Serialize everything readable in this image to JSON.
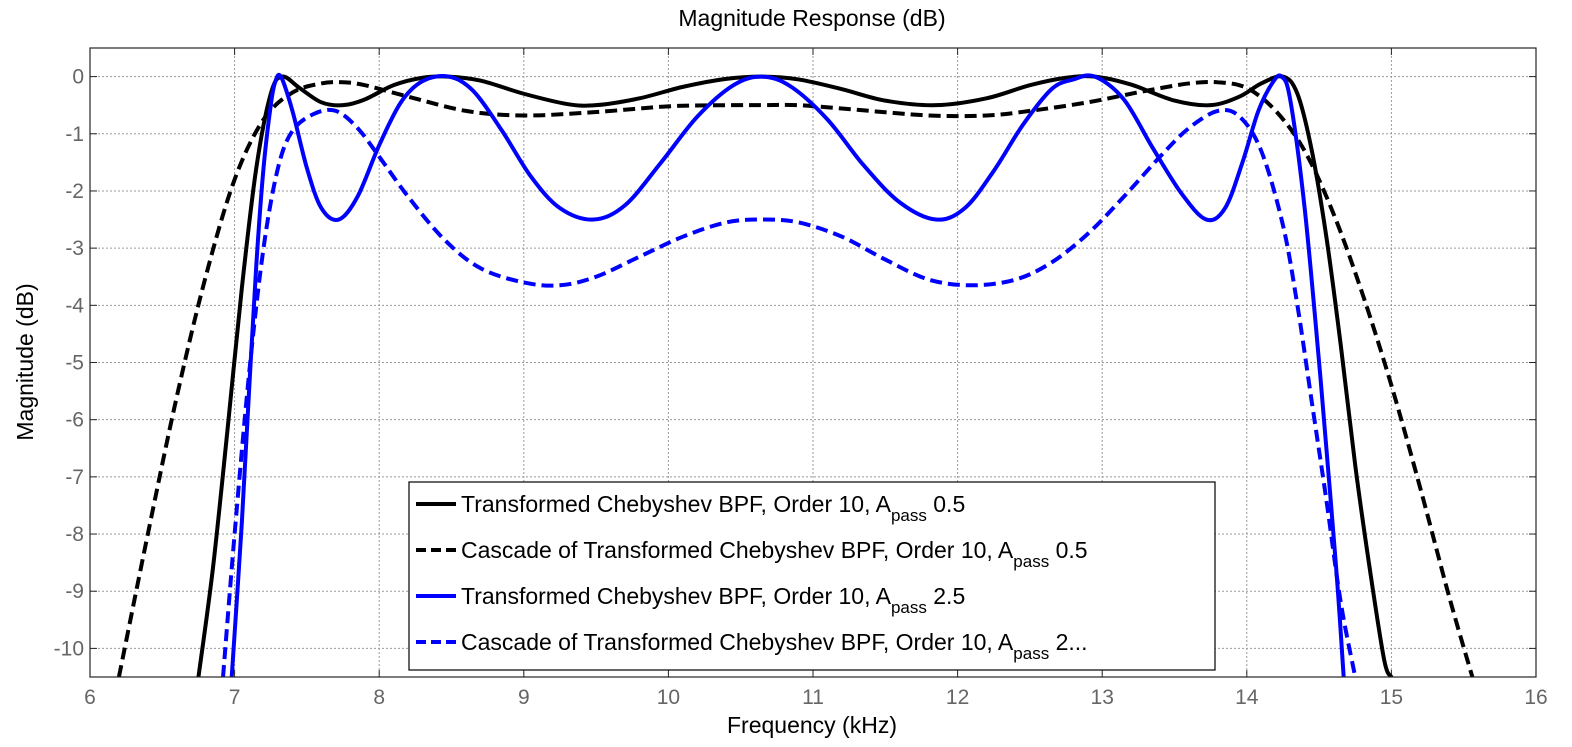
{
  "chart_data": {
    "type": "line",
    "title": "Magnitude Response (dB)",
    "xlabel": "Frequency (kHz)",
    "ylabel": "Magnitude (dB)",
    "xlim": [
      6,
      16
    ],
    "ylim": [
      -10.5,
      0.5
    ],
    "xticks": [
      6,
      7,
      8,
      9,
      10,
      11,
      12,
      13,
      14,
      15,
      16
    ],
    "yticks": [
      0,
      -1,
      -2,
      -3,
      -4,
      -5,
      -6,
      -7,
      -8,
      -9,
      -10
    ],
    "xtick_labels": [
      "6",
      "7",
      "8",
      "9",
      "10",
      "11",
      "12",
      "13",
      "14",
      "15",
      "16"
    ],
    "ytick_labels": [
      "0",
      "-1",
      "-2",
      "-3",
      "-4",
      "-5",
      "-6",
      "-7",
      "-8",
      "-9",
      "-10"
    ],
    "grid": true,
    "legend_position": "bottom-center",
    "series": [
      {
        "legend_main": "Transformed Chebyshev BPF, Order 10, A",
        "legend_sub": "pass",
        "legend_tail": " 0.5",
        "color": "#000000",
        "dash": "solid",
        "x": [
          6.75,
          6.85,
          6.95,
          7.05,
          7.15,
          7.25,
          7.33,
          7.45,
          7.6,
          7.75,
          7.9,
          8.1,
          8.3,
          8.48,
          8.7,
          9.0,
          9.3,
          9.5,
          9.8,
          10.1,
          10.4,
          10.65,
          10.9,
          11.2,
          11.5,
          11.85,
          12.2,
          12.5,
          12.75,
          12.95,
          13.2,
          13.5,
          13.75,
          13.95,
          14.1,
          14.25,
          14.35,
          14.45,
          14.55,
          14.65,
          14.75,
          14.85,
          14.95,
          15.0
        ],
        "y": [
          -10.5,
          -8.6,
          -6.2,
          -3.7,
          -1.6,
          -0.3,
          0.0,
          -0.2,
          -0.45,
          -0.5,
          -0.4,
          -0.15,
          -0.02,
          0.0,
          -0.07,
          -0.3,
          -0.48,
          -0.5,
          -0.38,
          -0.18,
          -0.04,
          0.0,
          -0.05,
          -0.22,
          -0.42,
          -0.5,
          -0.38,
          -0.15,
          -0.02,
          0.0,
          -0.14,
          -0.42,
          -0.5,
          -0.35,
          -0.12,
          0.0,
          -0.3,
          -1.3,
          -2.8,
          -4.7,
          -6.8,
          -8.6,
          -10.2,
          -10.5
        ]
      },
      {
        "legend_main": "Cascade of Transformed Chebyshev BPF, Order 10, A",
        "legend_sub": "pass",
        "legend_tail": " 0.5",
        "color": "#000000",
        "dash": "dashed",
        "x": [
          6.2,
          6.4,
          6.6,
          6.8,
          7.0,
          7.2,
          7.4,
          7.6,
          7.75,
          7.9,
          8.2,
          8.6,
          9.0,
          9.5,
          10.0,
          10.4,
          10.65,
          10.9,
          11.3,
          11.8,
          12.2,
          12.5,
          12.9,
          13.3,
          13.6,
          13.8,
          14.0,
          14.2,
          14.4,
          14.6,
          14.8,
          15.0,
          15.2,
          15.4,
          15.56
        ],
        "y": [
          -10.5,
          -8.0,
          -5.6,
          -3.5,
          -1.8,
          -0.75,
          -0.28,
          -0.12,
          -0.1,
          -0.15,
          -0.35,
          -0.6,
          -0.68,
          -0.62,
          -0.52,
          -0.5,
          -0.5,
          -0.5,
          -0.58,
          -0.68,
          -0.68,
          -0.6,
          -0.45,
          -0.25,
          -0.12,
          -0.1,
          -0.2,
          -0.6,
          -1.3,
          -2.4,
          -3.8,
          -5.4,
          -7.2,
          -9.1,
          -10.5
        ]
      },
      {
        "legend_main": "Transformed Chebyshev BPF, Order 10, A",
        "legend_sub": "pass",
        "legend_tail": " 2.5",
        "color": "#0000ff",
        "dash": "solid",
        "x": [
          6.98,
          7.05,
          7.1,
          7.15,
          7.2,
          7.25,
          7.28,
          7.32,
          7.4,
          7.5,
          7.6,
          7.72,
          7.85,
          8.0,
          8.15,
          8.3,
          8.48,
          8.65,
          8.85,
          9.05,
          9.25,
          9.48,
          9.7,
          9.95,
          10.2,
          10.45,
          10.65,
          10.85,
          11.1,
          11.35,
          11.6,
          11.85,
          12.05,
          12.25,
          12.45,
          12.65,
          12.8,
          12.95,
          13.15,
          13.35,
          13.55,
          13.72,
          13.85,
          13.97,
          14.08,
          14.18,
          14.24,
          14.3,
          14.4,
          14.5,
          14.58,
          14.63,
          14.67
        ],
        "y": [
          -10.5,
          -7.8,
          -5.5,
          -3.3,
          -1.6,
          -0.5,
          -0.1,
          0.0,
          -0.6,
          -1.6,
          -2.3,
          -2.5,
          -2.1,
          -1.2,
          -0.45,
          -0.08,
          0.0,
          -0.25,
          -0.95,
          -1.75,
          -2.3,
          -2.5,
          -2.25,
          -1.5,
          -0.7,
          -0.15,
          0.0,
          -0.18,
          -0.75,
          -1.55,
          -2.2,
          -2.5,
          -2.3,
          -1.65,
          -0.85,
          -0.22,
          -0.05,
          0.0,
          -0.4,
          -1.25,
          -2.05,
          -2.5,
          -2.3,
          -1.5,
          -0.6,
          -0.1,
          0.0,
          -0.4,
          -2.3,
          -5.0,
          -7.4,
          -9.0,
          -10.5
        ]
      },
      {
        "legend_main": "Cascade of Transformed Chebyshev BPF, Order 10, A",
        "legend_sub": "pass",
        "legend_tail": " 2...",
        "color": "#0000ff",
        "dash": "dashed",
        "x": [
          6.92,
          7.0,
          7.1,
          7.2,
          7.3,
          7.4,
          7.55,
          7.7,
          7.85,
          8.0,
          8.2,
          8.45,
          8.7,
          9.0,
          9.25,
          9.5,
          9.8,
          10.1,
          10.4,
          10.65,
          10.9,
          11.2,
          11.5,
          11.8,
          12.1,
          12.4,
          12.65,
          12.9,
          13.15,
          13.4,
          13.6,
          13.8,
          13.95,
          14.1,
          14.25,
          14.35,
          14.45,
          14.55,
          14.65,
          14.75
        ],
        "y": [
          -10.5,
          -8.0,
          -5.2,
          -3.0,
          -1.6,
          -0.95,
          -0.65,
          -0.6,
          -0.9,
          -1.4,
          -2.1,
          -2.85,
          -3.35,
          -3.6,
          -3.65,
          -3.5,
          -3.15,
          -2.8,
          -2.55,
          -2.5,
          -2.55,
          -2.8,
          -3.2,
          -3.55,
          -3.65,
          -3.55,
          -3.25,
          -2.75,
          -2.1,
          -1.4,
          -0.9,
          -0.6,
          -0.7,
          -1.3,
          -2.6,
          -4.0,
          -5.7,
          -7.4,
          -9.2,
          -10.5
        ]
      }
    ]
  }
}
